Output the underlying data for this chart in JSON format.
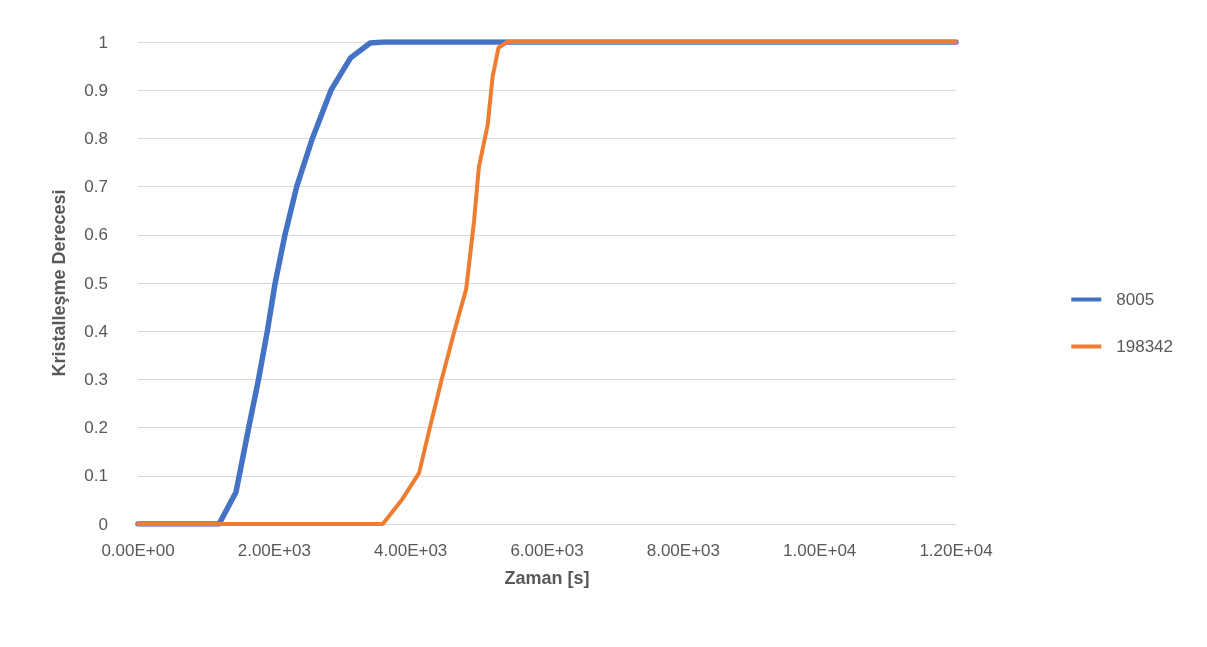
{
  "chart_data": {
    "type": "line",
    "xlabel": "Zaman [s]",
    "ylabel": "Kristalleşme Derecesi",
    "xlim": [
      0,
      12000
    ],
    "xticks": [
      {
        "value": 0,
        "label": "0.00E+00"
      },
      {
        "value": 2000,
        "label": "2.00E+03"
      },
      {
        "value": 4000,
        "label": "4.00E+03"
      },
      {
        "value": 6000,
        "label": "6.00E+03"
      },
      {
        "value": 8000,
        "label": "8.00E+03"
      },
      {
        "value": 10000,
        "label": "1.00E+04"
      },
      {
        "value": 12000,
        "label": "1.20E+04"
      }
    ],
    "ylim": [
      0,
      1
    ],
    "yticks": [
      0,
      0.1,
      0.2,
      0.3,
      0.4,
      0.5,
      0.6,
      0.7,
      0.8,
      0.9,
      1
    ],
    "grid": "y",
    "legend": "right",
    "marker": "none",
    "line_style": "solid",
    "series": [
      {
        "name": "8005",
        "color": "#4472c4",
        "x": [
          0,
          1190,
          1437,
          1624,
          1768,
          1897,
          2012,
          2156,
          2328,
          2558,
          2831,
          3118,
          3405,
          3600,
          12000
        ],
        "values": [
          0,
          0,
          0.066,
          0.2,
          0.3,
          0.4,
          0.5,
          0.6,
          0.7,
          0.8,
          0.9,
          0.967,
          0.998,
          1,
          1
        ]
      },
      {
        "name": "198342",
        "color": "#ed7d31",
        "x": [
          0,
          3592,
          3880,
          4124,
          4282,
          4455,
          4641,
          4814,
          4929,
          5001,
          5130,
          5202,
          5288,
          5417,
          12000
        ],
        "values": [
          0,
          0,
          0.052,
          0.106,
          0.2,
          0.3,
          0.4,
          0.487,
          0.627,
          0.741,
          0.828,
          0.928,
          0.988,
          1,
          1
        ]
      }
    ]
  }
}
